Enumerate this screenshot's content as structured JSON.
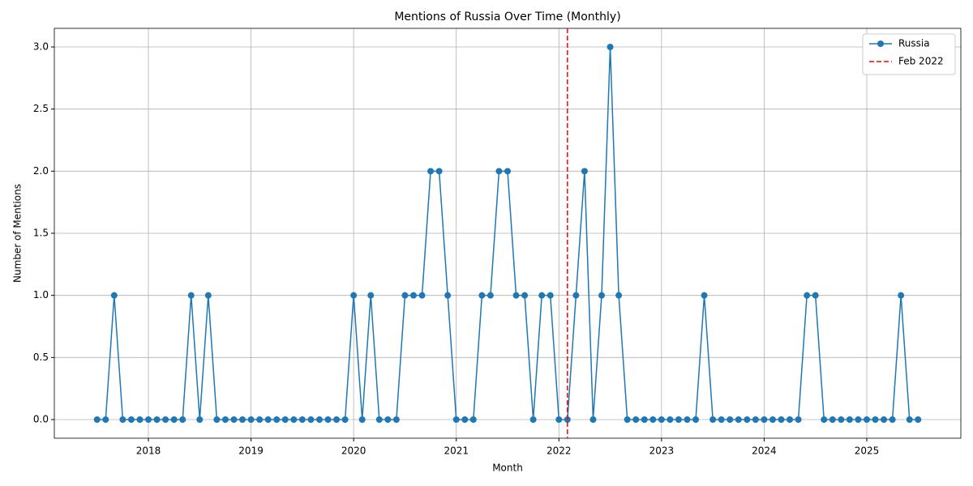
{
  "chart_data": {
    "type": "line",
    "title": "Mentions of Russia Over Time (Monthly)",
    "x_label": "Month",
    "y_label": "Number of Mentions",
    "x": [
      "2017-07",
      "2017-08",
      "2017-09",
      "2017-10",
      "2017-11",
      "2017-12",
      "2018-01",
      "2018-02",
      "2018-03",
      "2018-04",
      "2018-05",
      "2018-06",
      "2018-07",
      "2018-08",
      "2018-09",
      "2018-10",
      "2018-11",
      "2018-12",
      "2019-01",
      "2019-02",
      "2019-03",
      "2019-04",
      "2019-05",
      "2019-06",
      "2019-07",
      "2019-08",
      "2019-09",
      "2019-10",
      "2019-11",
      "2019-12",
      "2020-01",
      "2020-02",
      "2020-03",
      "2020-04",
      "2020-05",
      "2020-06",
      "2020-07",
      "2020-08",
      "2020-09",
      "2020-10",
      "2020-11",
      "2020-12",
      "2021-01",
      "2021-02",
      "2021-03",
      "2021-04",
      "2021-05",
      "2021-06",
      "2021-07",
      "2021-08",
      "2021-09",
      "2021-10",
      "2021-11",
      "2021-12",
      "2022-01",
      "2022-02",
      "2022-03",
      "2022-04",
      "2022-05",
      "2022-06",
      "2022-07",
      "2022-08",
      "2022-09",
      "2022-10",
      "2022-11",
      "2022-12",
      "2023-01",
      "2023-02",
      "2023-03",
      "2023-04",
      "2023-05",
      "2023-06",
      "2023-07",
      "2023-08",
      "2023-09",
      "2023-10",
      "2023-11",
      "2023-12",
      "2024-01",
      "2024-02",
      "2024-03",
      "2024-04",
      "2024-05",
      "2024-06",
      "2024-07",
      "2024-08",
      "2024-09",
      "2024-10",
      "2024-11",
      "2024-12",
      "2025-01",
      "2025-02",
      "2025-03",
      "2025-04",
      "2025-05",
      "2025-06",
      "2025-07"
    ],
    "series": [
      {
        "name": "Russia",
        "color": "#1f77b4",
        "values": [
          0,
          0,
          1,
          0,
          0,
          0,
          0,
          0,
          0,
          0,
          0,
          1,
          0,
          1,
          0,
          0,
          0,
          0,
          0,
          0,
          0,
          0,
          0,
          0,
          0,
          0,
          0,
          0,
          0,
          0,
          1,
          0,
          1,
          0,
          0,
          0,
          1,
          1,
          1,
          2,
          2,
          1,
          0,
          0,
          0,
          1,
          1,
          2,
          2,
          1,
          1,
          0,
          1,
          1,
          0,
          0,
          1,
          2,
          0,
          1,
          3,
          1,
          0,
          0,
          0,
          0,
          0,
          0,
          0,
          0,
          0,
          1,
          0,
          0,
          0,
          0,
          0,
          0,
          0,
          0,
          0,
          0,
          0,
          1,
          1,
          0,
          0,
          0,
          0,
          0,
          0,
          0,
          0,
          0,
          1,
          0,
          0
        ]
      }
    ],
    "reference_line": {
      "x": "2022-02",
      "label": "Feb 2022",
      "color": "#ff0000"
    },
    "xlim": [
      "2017-02",
      "2025-12"
    ],
    "xticks": [
      2018,
      2019,
      2020,
      2021,
      2022,
      2023,
      2024,
      2025
    ],
    "ylim": [
      -0.15,
      3.15
    ],
    "yticks": [
      {
        "value": 0,
        "label": "0.0"
      },
      {
        "value": 0.5,
        "label": "0.5"
      },
      {
        "value": 1,
        "label": "1.0"
      },
      {
        "value": 1.5,
        "label": "1.5"
      },
      {
        "value": 2,
        "label": "2.0"
      },
      {
        "value": 2.5,
        "label": "2.5"
      },
      {
        "value": 3,
        "label": "3.0"
      }
    ],
    "grid": true,
    "legend": "upper-right"
  }
}
